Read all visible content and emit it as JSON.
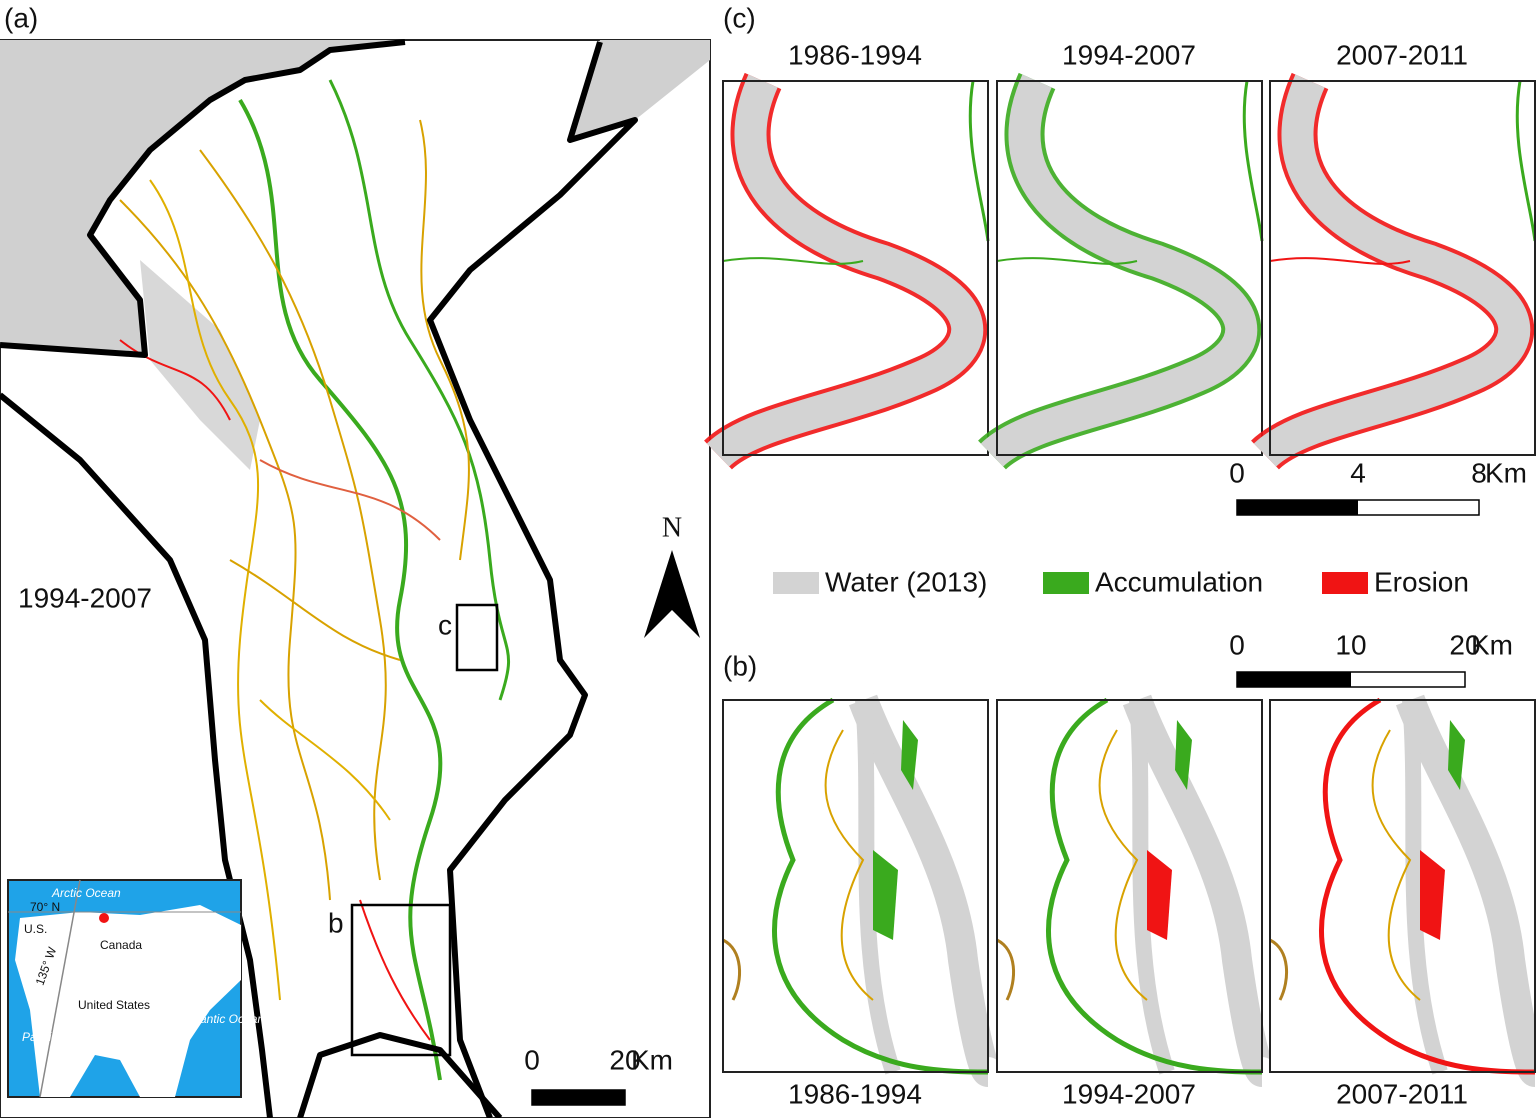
{
  "panel_a": {
    "label": "(a)",
    "period": "1994-2007",
    "box_labels": [
      "c",
      "b"
    ],
    "north": "N",
    "scale": {
      "ticks": [
        0,
        20
      ],
      "unit": "Km"
    },
    "inset": {
      "labels": [
        "Arctic Ocean",
        "70° N",
        "U.S.",
        "Canada",
        "135° W",
        "United States",
        "Pacific Ocean",
        "Atlantic Ocean"
      ]
    }
  },
  "panel_c": {
    "label": "(c)",
    "periods": [
      "1986-1994",
      "1994-2007",
      "2007-2011"
    ],
    "scale": {
      "ticks": [
        0,
        4,
        8
      ],
      "unit": "Km"
    }
  },
  "legend": [
    {
      "name": "Water (2013)",
      "color": "#d3d3d3"
    },
    {
      "name": "Accumulation",
      "color": "#3aaa1e"
    },
    {
      "name": "Erosion",
      "color": "#f01414"
    }
  ],
  "panel_b": {
    "label": "(b)",
    "periods": [
      "1986-1994",
      "1994-2007",
      "2007-2011"
    ],
    "scale": {
      "ticks": [
        0,
        10,
        20
      ],
      "unit": "Km"
    }
  }
}
